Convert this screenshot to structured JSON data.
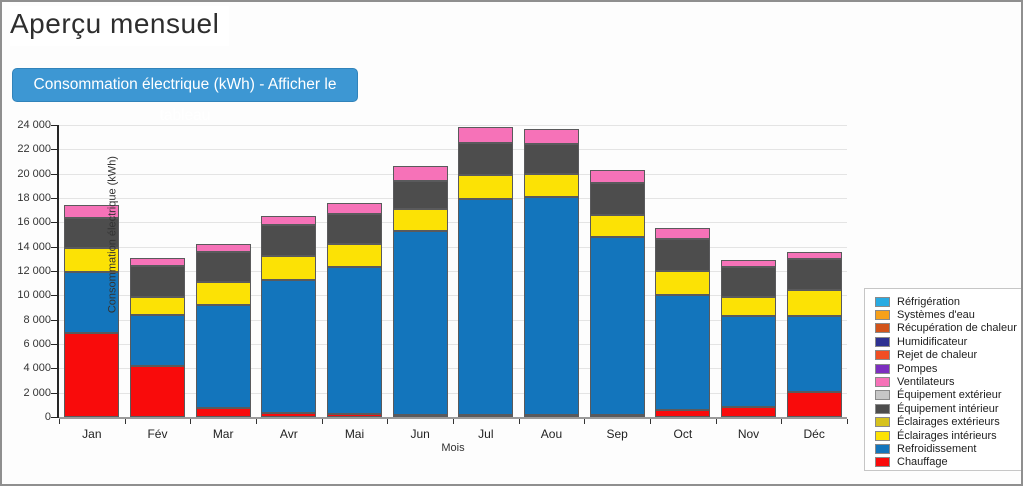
{
  "page": {
    "title": "Aperçu mensuel",
    "button_label": "Consommation électrique (kWh) - Afficher le tableau",
    "button_color": "#3d97d3"
  },
  "chart_data": {
    "type": "bar",
    "stacked": true,
    "title": "",
    "xlabel": "Mois",
    "ylabel": "Consommation électrique (kWh)",
    "ylim": [
      0,
      24000
    ],
    "y_tick_step": 2000,
    "y_tick_labels": [
      "0",
      "2 000",
      "4 000",
      "6 000",
      "8 000",
      "10 000",
      "12 000",
      "14 000",
      "16 000",
      "18 000",
      "20 000",
      "22 000",
      "24 000"
    ],
    "grid": true,
    "legend_position": "right",
    "categories": [
      "Jan",
      "Fév",
      "Mar",
      "Avr",
      "Mai",
      "Jun",
      "Jul",
      "Aou",
      "Sep",
      "Oct",
      "Nov",
      "Déc"
    ],
    "series": [
      {
        "name": "Réfrigération",
        "color": "#29abe2",
        "values": [
          0,
          0,
          0,
          0,
          0,
          0,
          0,
          0,
          0,
          0,
          0,
          0
        ]
      },
      {
        "name": "Systèmes d'eau",
        "color": "#f7a11a",
        "values": [
          0,
          0,
          0,
          0,
          0,
          0,
          0,
          0,
          0,
          0,
          0,
          0
        ]
      },
      {
        "name": "Récupération de chaleur",
        "color": "#d2541b",
        "values": [
          0,
          0,
          0,
          0,
          0,
          0,
          0,
          0,
          0,
          0,
          0,
          0
        ]
      },
      {
        "name": "Humidificateur",
        "color": "#2e3192",
        "values": [
          0,
          0,
          0,
          0,
          0,
          0,
          0,
          0,
          0,
          0,
          0,
          0
        ]
      },
      {
        "name": "Rejet de chaleur",
        "color": "#f04e23",
        "values": [
          0,
          0,
          0,
          0,
          0,
          0,
          0,
          0,
          0,
          0,
          0,
          0
        ]
      },
      {
        "name": "Pompes",
        "color": "#7c2ebf",
        "values": [
          0,
          0,
          0,
          0,
          0,
          0,
          0,
          0,
          0,
          0,
          0,
          0
        ]
      },
      {
        "name": "Ventilateurs",
        "color": "#f672b8",
        "values": [
          1000,
          700,
          600,
          700,
          900,
          1300,
          1300,
          1300,
          1100,
          900,
          600,
          550
        ]
      },
      {
        "name": "Équipement extérieur",
        "color": "#c7c7c7",
        "values": [
          0,
          0,
          0,
          0,
          0,
          0,
          0,
          0,
          0,
          0,
          0,
          0
        ]
      },
      {
        "name": "Équipement intérieur",
        "color": "#4d4d4d",
        "values": [
          2500,
          2500,
          2500,
          2600,
          2500,
          2300,
          2600,
          2400,
          2600,
          2600,
          2400,
          2600
        ]
      },
      {
        "name": "Éclairages extérieurs",
        "color": "#d6c21e",
        "values": [
          0,
          0,
          0,
          0,
          0,
          0,
          0,
          0,
          0,
          0,
          0,
          0
        ]
      },
      {
        "name": "Éclairages intérieurs",
        "color": "#fce205",
        "values": [
          2000,
          1500,
          1900,
          1900,
          1900,
          1800,
          2000,
          1900,
          1800,
          2000,
          1600,
          2100
        ]
      },
      {
        "name": "Refroidissement",
        "color": "#1375bc",
        "values": [
          5000,
          4200,
          8500,
          11000,
          12050,
          15100,
          17750,
          17950,
          14650,
          9400,
          7500,
          6250
        ]
      },
      {
        "name": "Chauffage",
        "color": "#f90b0b",
        "values": [
          6900,
          4200,
          700,
          300,
          250,
          100,
          50,
          50,
          150,
          600,
          800,
          2050
        ]
      }
    ],
    "totals": [
      17400,
      13100,
      14200,
      16500,
      17600,
      20600,
      23700,
      23600,
      20300,
      15500,
      12900,
      13550
    ]
  }
}
